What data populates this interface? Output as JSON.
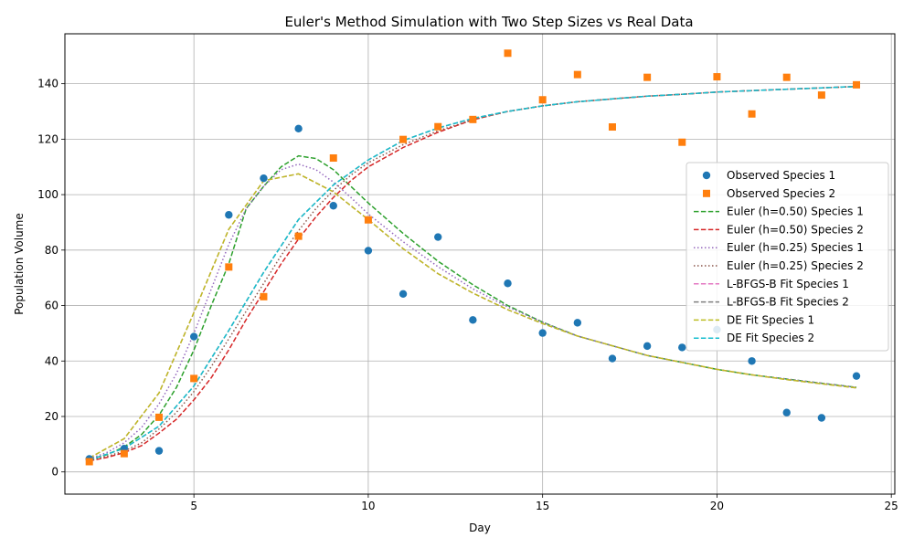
{
  "chart_data": {
    "type": "scatter",
    "title": "Euler's Method Simulation with Two Step Sizes vs Real Data",
    "xlabel": "Day",
    "ylabel": "Population Volume",
    "xlim": [
      1.3,
      25.1
    ],
    "ylim": [
      -8,
      158
    ],
    "xticks": [
      5,
      10,
      15,
      20,
      25
    ],
    "yticks": [
      0,
      20,
      40,
      60,
      80,
      100,
      120,
      140
    ],
    "grid": true,
    "legend_position": "right",
    "observed": [
      {
        "name": "Observed Species 1",
        "color": "#1f77b4",
        "marker": "circle",
        "x": [
          2,
          3,
          4,
          5,
          6,
          7,
          8,
          9,
          10,
          11,
          12,
          13,
          14,
          15,
          16,
          17,
          18,
          19,
          20,
          21,
          22,
          23,
          24
        ],
        "y": [
          4.7,
          8.4,
          7.6,
          48.8,
          92.7,
          105.9,
          123.8,
          96.0,
          79.8,
          64.2,
          84.7,
          54.8,
          68.0,
          50.1,
          53.8,
          40.9,
          45.4,
          44.9,
          51.3,
          40.0,
          21.4,
          19.5,
          34.6
        ]
      },
      {
        "name": "Observed Species 2",
        "color": "#ff7f0e",
        "marker": "square",
        "x": [
          2,
          3,
          4,
          5,
          6,
          7,
          8,
          9,
          10,
          11,
          12,
          13,
          14,
          15,
          16,
          17,
          18,
          19,
          20,
          21,
          22,
          23,
          24
        ],
        "y": [
          3.7,
          6.6,
          19.7,
          33.7,
          73.9,
          63.2,
          85.0,
          113.2,
          90.9,
          119.9,
          124.5,
          127.1,
          151.0,
          134.2,
          143.3,
          124.4,
          142.3,
          118.9,
          142.5,
          129.1,
          142.3,
          135.9,
          139.6
        ]
      }
    ],
    "x": [
      2,
      3,
      4,
      5,
      6,
      7,
      8,
      9,
      10,
      11,
      12,
      13,
      14,
      15,
      16,
      17,
      18,
      19,
      20,
      21,
      22,
      23,
      24
    ],
    "series": [
      {
        "name": "Euler (h=0.50) Species 1",
        "color": "#2ca02c",
        "dash": "dashed",
        "x": [
          2,
          2.5,
          3,
          3.5,
          4,
          4.5,
          5,
          5.5,
          6,
          6.5,
          7,
          7.5,
          8,
          8.5,
          9,
          9.5,
          10,
          11,
          12,
          13,
          14,
          15,
          16,
          17,
          18,
          19,
          20,
          21,
          22,
          23,
          24
        ],
        "y": [
          4.5,
          6.2,
          9.0,
          13.5,
          20.5,
          30.5,
          44,
          60,
          75,
          95,
          103,
          110,
          114,
          113,
          109,
          103,
          97,
          86,
          76,
          67.5,
          60,
          54,
          49,
          45.5,
          42,
          39.5,
          37,
          35,
          33.5,
          32,
          30.5
        ]
      },
      {
        "name": "Euler (h=0.50) Species 2",
        "color": "#d62728",
        "dash": "dashed",
        "x": [
          2,
          2.5,
          3,
          3.5,
          4,
          4.5,
          5,
          5.5,
          6,
          6.5,
          7,
          7.5,
          8,
          8.5,
          9,
          9.5,
          10,
          11,
          12,
          13,
          14,
          15,
          16,
          17,
          18,
          19,
          20,
          21,
          22,
          23,
          24
        ],
        "y": [
          4.0,
          5.2,
          7.0,
          9.5,
          14.0,
          19.0,
          26,
          34,
          44,
          55,
          65,
          75,
          84,
          92,
          99,
          105,
          110,
          117,
          122.5,
          127,
          130,
          132,
          133.5,
          134.5,
          135.5,
          136.2,
          137,
          137.5,
          138,
          138.5,
          139
        ]
      },
      {
        "name": "Euler (h=0.25) Species 1",
        "color": "#9467bd",
        "dash": "dotted",
        "x": [
          2,
          2.5,
          3,
          3.5,
          4,
          4.5,
          5,
          5.5,
          6,
          6.5,
          7,
          7.5,
          8,
          8.5,
          9,
          9.5,
          10,
          11,
          12,
          13,
          14,
          15,
          16,
          17,
          18,
          19,
          20,
          21,
          22,
          23,
          24
        ],
        "y": [
          4.7,
          7.0,
          10.5,
          16,
          24.5,
          35.5,
          50,
          66,
          82,
          95,
          103,
          109,
          111,
          109,
          104.5,
          99,
          93,
          83,
          74,
          66,
          59.5,
          54,
          49,
          45.5,
          42,
          39.5,
          37,
          35,
          33.5,
          32,
          30.5
        ]
      },
      {
        "name": "Euler (h=0.25) Species 2",
        "color": "#8c564b",
        "dash": "dotted",
        "x": [
          2,
          2.5,
          3,
          3.5,
          4,
          4.5,
          5,
          5.5,
          6,
          6.5,
          7,
          7.5,
          8,
          8.5,
          9,
          9.5,
          10,
          11,
          12,
          13,
          14,
          15,
          16,
          17,
          18,
          19,
          20,
          21,
          22,
          23,
          24
        ],
        "y": [
          4.2,
          5.6,
          7.5,
          10.5,
          15.5,
          21.5,
          29,
          38,
          48,
          58,
          68,
          78,
          87,
          95,
          101.5,
          107,
          111.5,
          118,
          123,
          127,
          130,
          132,
          133.5,
          134.5,
          135.5,
          136.2,
          137,
          137.5,
          138,
          138.5,
          139
        ]
      },
      {
        "name": "L-BFGS-B Fit Species 1",
        "color": "#e377c2",
        "dash": "dashed",
        "x": [
          2,
          3,
          4,
          5,
          6,
          7,
          8,
          9,
          10,
          11,
          12,
          13,
          14,
          15,
          16,
          17,
          18,
          19,
          20,
          21,
          22,
          23,
          24
        ],
        "y": [
          5.0,
          12.0,
          28.5,
          57.5,
          87.5,
          105,
          107.5,
          101,
          91,
          80.5,
          71.5,
          64.5,
          58.5,
          53.5,
          49,
          45.5,
          42,
          39.5,
          37,
          35,
          33.3,
          31.8,
          30.3
        ]
      },
      {
        "name": "L-BFGS-B Fit Species 2",
        "color": "#7f7f7f",
        "dash": "dashed",
        "x": [
          2,
          3,
          4,
          5,
          6,
          7,
          8,
          9,
          10,
          11,
          12,
          13,
          14,
          15,
          16,
          17,
          18,
          19,
          20,
          21,
          22,
          23,
          24
        ],
        "y": [
          4.3,
          8.5,
          16.5,
          31,
          51,
          72,
          91,
          103.5,
          112.5,
          119.5,
          124,
          127.5,
          130,
          132,
          133.5,
          134.5,
          135.5,
          136.2,
          137,
          137.5,
          138,
          138.5,
          139
        ]
      },
      {
        "name": "DE Fit Species 1",
        "color": "#bcbd22",
        "dash": "dashed",
        "x": [
          2,
          3,
          4,
          5,
          6,
          7,
          8,
          9,
          10,
          11,
          12,
          13,
          14,
          15,
          16,
          17,
          18,
          19,
          20,
          21,
          22,
          23,
          24
        ],
        "y": [
          5.0,
          12.0,
          28.5,
          57.5,
          87.5,
          105,
          107.5,
          101,
          91,
          80.5,
          71.5,
          64.5,
          58.5,
          53.5,
          49,
          45.5,
          42,
          39.5,
          37,
          35,
          33.3,
          31.8,
          30.3
        ]
      },
      {
        "name": "DE Fit Species 2",
        "color": "#17becf",
        "dash": "dashed",
        "x": [
          2,
          3,
          4,
          5,
          6,
          7,
          8,
          9,
          10,
          11,
          12,
          13,
          14,
          15,
          16,
          17,
          18,
          19,
          20,
          21,
          22,
          23,
          24
        ],
        "y": [
          4.3,
          8.5,
          16.5,
          31,
          51,
          72,
          91,
          103.5,
          112.5,
          119.5,
          124,
          127.5,
          130,
          132,
          133.5,
          134.5,
          135.5,
          136.2,
          137,
          137.5,
          138,
          138.5,
          139
        ]
      }
    ]
  }
}
